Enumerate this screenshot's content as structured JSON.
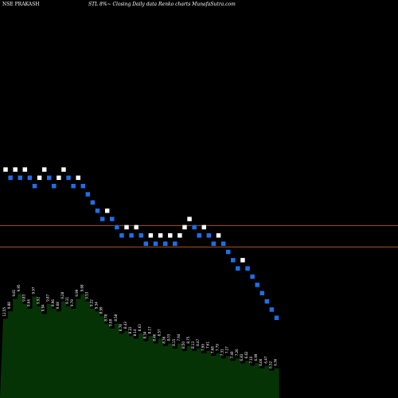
{
  "header": {
    "left": "NSE PRAKASH",
    "right": "STL 8%~  Closing Daily data  Renko  charts MunafaSutra.com"
  },
  "colors": {
    "background": "#000000",
    "brick_up": "#ffffff",
    "brick_down": "#1e6fe6",
    "reference_line": "#b0521a",
    "volume_fill": "#063306"
  },
  "chart_data": {
    "type": "renko",
    "bricks": [
      {
        "price": 27.0,
        "dir": "up"
      },
      {
        "price": 26.5,
        "dir": "down"
      },
      {
        "price": 27.0,
        "dir": "up"
      },
      {
        "price": 26.5,
        "dir": "down"
      },
      {
        "price": 27.0,
        "dir": "up"
      },
      {
        "price": 26.5,
        "dir": "down"
      },
      {
        "price": 26.0,
        "dir": "down"
      },
      {
        "price": 26.5,
        "dir": "up"
      },
      {
        "price": 27.0,
        "dir": "up"
      },
      {
        "price": 26.5,
        "dir": "down"
      },
      {
        "price": 26.0,
        "dir": "down"
      },
      {
        "price": 26.5,
        "dir": "up"
      },
      {
        "price": 27.0,
        "dir": "up"
      },
      {
        "price": 26.5,
        "dir": "down"
      },
      {
        "price": 26.0,
        "dir": "down"
      },
      {
        "price": 26.5,
        "dir": "up"
      },
      {
        "price": 26.0,
        "dir": "down"
      },
      {
        "price": 25.5,
        "dir": "down"
      },
      {
        "price": 25.0,
        "dir": "down"
      },
      {
        "price": 24.5,
        "dir": "down"
      },
      {
        "price": 24.0,
        "dir": "down"
      },
      {
        "price": 24.5,
        "dir": "up"
      },
      {
        "price": 24.0,
        "dir": "down"
      },
      {
        "price": 23.5,
        "dir": "down"
      },
      {
        "price": 23.0,
        "dir": "down"
      },
      {
        "price": 23.5,
        "dir": "up"
      },
      {
        "price": 23.0,
        "dir": "down"
      },
      {
        "price": 23.5,
        "dir": "up"
      },
      {
        "price": 23.0,
        "dir": "down"
      },
      {
        "price": 22.5,
        "dir": "down"
      },
      {
        "price": 23.0,
        "dir": "up"
      },
      {
        "price": 22.5,
        "dir": "down"
      },
      {
        "price": 23.0,
        "dir": "up"
      },
      {
        "price": 22.5,
        "dir": "down"
      },
      {
        "price": 23.0,
        "dir": "up"
      },
      {
        "price": 22.5,
        "dir": "down"
      },
      {
        "price": 23.0,
        "dir": "up"
      },
      {
        "price": 23.5,
        "dir": "up"
      },
      {
        "price": 24.0,
        "dir": "up"
      },
      {
        "price": 23.5,
        "dir": "down"
      },
      {
        "price": 23.0,
        "dir": "down"
      },
      {
        "price": 23.5,
        "dir": "up"
      },
      {
        "price": 23.0,
        "dir": "down"
      },
      {
        "price": 22.5,
        "dir": "down"
      },
      {
        "price": 23.0,
        "dir": "up"
      },
      {
        "price": 22.5,
        "dir": "down"
      },
      {
        "price": 22.0,
        "dir": "down"
      },
      {
        "price": 21.5,
        "dir": "down"
      },
      {
        "price": 21.0,
        "dir": "down"
      },
      {
        "price": 21.5,
        "dir": "up"
      },
      {
        "price": 21.0,
        "dir": "down"
      },
      {
        "price": 20.5,
        "dir": "down"
      },
      {
        "price": 20.0,
        "dir": "down"
      },
      {
        "price": 19.5,
        "dir": "down"
      },
      {
        "price": 19.0,
        "dir": "down"
      },
      {
        "price": 18.5,
        "dir": "down"
      },
      {
        "price": 18.0,
        "dir": "down"
      }
    ],
    "reference_lines": [
      23.6,
      22.3
    ],
    "volume": {
      "values": [
        32,
        35,
        40,
        42,
        38,
        36,
        41,
        37,
        34,
        38,
        36,
        35,
        39,
        37,
        36,
        40,
        42,
        39,
        36,
        35,
        33,
        30,
        28,
        30,
        26,
        27,
        25,
        24,
        26,
        23,
        25,
        22,
        24,
        21,
        22,
        20,
        22,
        19,
        21,
        19,
        20,
        18,
        19,
        17,
        18,
        16,
        17,
        15,
        16,
        14,
        15,
        13,
        14,
        12,
        13,
        11,
        12
      ],
      "ymax": 45
    },
    "price_labels": [
      "12.55",
      "9.88",
      "9.81",
      "9.95",
      "9.83",
      "9.64",
      "9.97",
      "9.92",
      "9.94",
      "9.87",
      "9.96",
      "9.68",
      "9.28",
      "9.31",
      "9.79",
      "9.99",
      "9.68",
      "9.53",
      "9.22",
      "9.34",
      "8.99",
      "8.78",
      "9.08",
      "8.58",
      "8.78",
      "8.43",
      "8.22",
      "8.14",
      "8.63",
      "8.34",
      "8.17",
      "8.46",
      "8.57",
      "8.36",
      "8.03",
      "8.15",
      "7.94",
      "8.50",
      "8.75",
      "8.13",
      "8.47",
      "7.99",
      "7.61",
      "7.68",
      "7.79",
      "7.31",
      "7.27",
      "7.49",
      "7.26",
      "6.83",
      "6.62",
      "7.10",
      "6.99",
      "6.66",
      "6.47",
      "6.52",
      "6.36"
    ]
  }
}
